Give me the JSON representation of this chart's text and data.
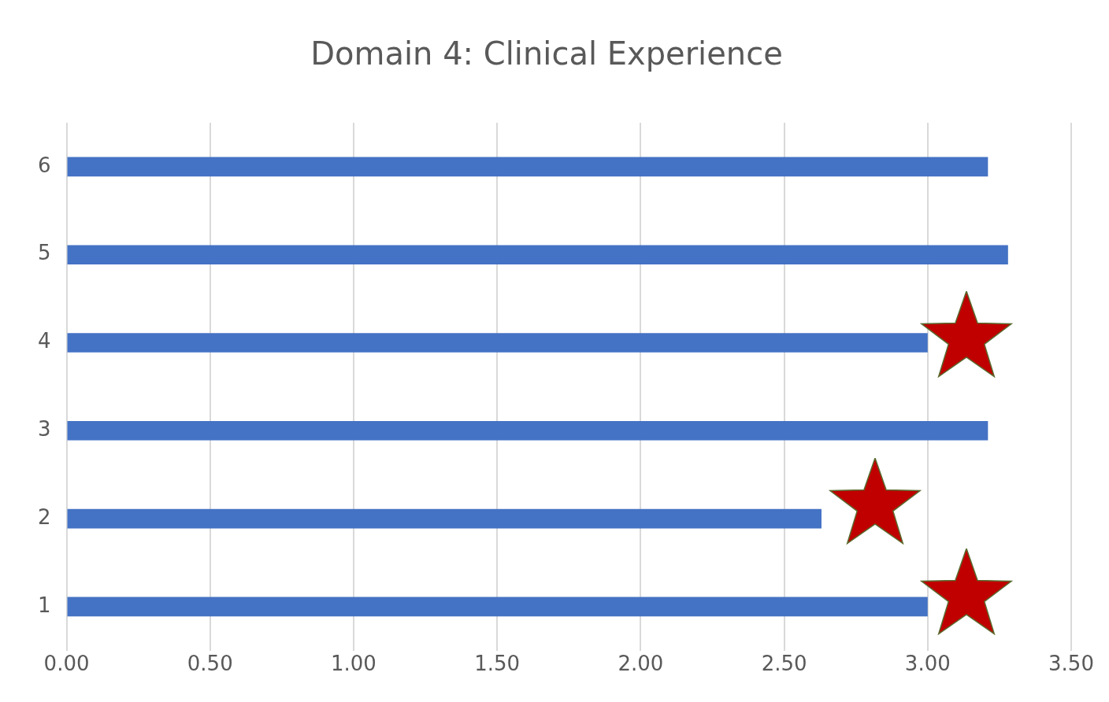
{
  "chart_data": {
    "type": "bar",
    "orientation": "horizontal",
    "title": "Domain 4: Clinical Experience",
    "categories": [
      "6",
      "5",
      "4",
      "3",
      "2",
      "1"
    ],
    "values": [
      3.21,
      3.28,
      3.0,
      3.21,
      2.63,
      3.0
    ],
    "color": "#4472c4",
    "xlim": [
      0,
      3.5
    ],
    "xticks": [
      {
        "value": 0,
        "label": "0.00"
      },
      {
        "value": 0.5,
        "label": "0.50"
      },
      {
        "value": 1,
        "label": "1.00"
      },
      {
        "value": 1.5,
        "label": "1.50"
      },
      {
        "value": 2,
        "label": "2.00"
      },
      {
        "value": 2.5,
        "label": "2.50"
      },
      {
        "value": 3,
        "label": "3.00"
      },
      {
        "value": 3.5,
        "label": "3.50"
      }
    ],
    "grid": "x"
  }
}
